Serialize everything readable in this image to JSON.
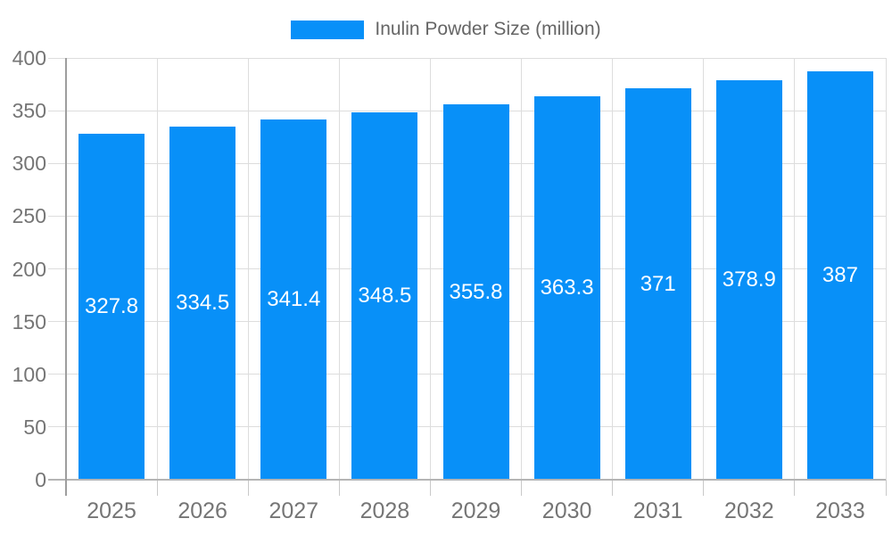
{
  "legend": {
    "label": "Inulin Powder Size (million)"
  },
  "colors": {
    "bar": "#0890f8",
    "grid": "#dddddd",
    "baseline": "#b5b5b5",
    "axis": "#9e9e9e",
    "tick": "#c9c9c9",
    "tick_label": "#757575",
    "legend_text": "#666666",
    "bar_label": "#ffffff",
    "background": "#ffffff"
  },
  "chart_data": {
    "type": "bar",
    "title": "Inulin Powder Size (million)",
    "categories": [
      "2025",
      "2026",
      "2027",
      "2028",
      "2029",
      "2030",
      "2031",
      "2032",
      "2033"
    ],
    "series": [
      {
        "name": "Inulin Powder Size (million)",
        "values": [
          327.8,
          334.5,
          341.4,
          348.5,
          355.8,
          363.3,
          371,
          378.9,
          387
        ]
      }
    ],
    "value_labels": [
      "327.8",
      "334.5",
      "341.4",
      "348.5",
      "355.8",
      "363.3",
      "371",
      "378.9",
      "387"
    ],
    "xlabel": "",
    "ylabel": "",
    "ylim": [
      0,
      400
    ],
    "yticks": [
      0,
      50,
      100,
      150,
      200,
      250,
      300,
      350,
      400
    ],
    "grid": true,
    "legend_position": "top-center",
    "value_labels_position": "center-of-bar"
  }
}
